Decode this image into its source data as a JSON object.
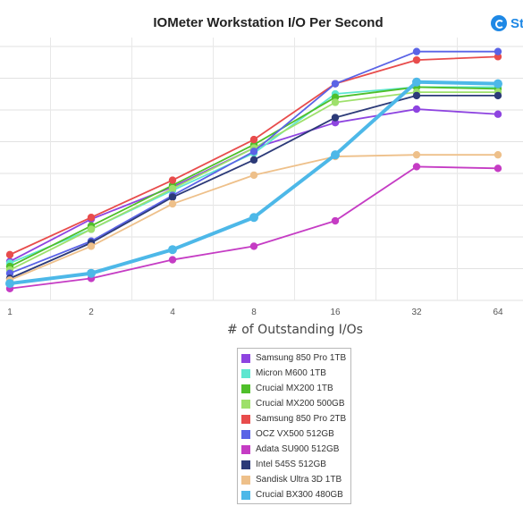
{
  "chart_data": {
    "type": "line",
    "title": "IOMeter Workstation I/O Per Second",
    "xlabel": "# of Outstanding I/Os",
    "ylabel": "",
    "x": [
      1,
      2,
      4,
      8,
      16,
      32,
      64
    ],
    "x_tick_labels": [
      "1",
      "2",
      "4",
      "8",
      "16",
      "32",
      "64"
    ],
    "grid": true,
    "legend_placement": "bottom-center",
    "series": [
      {
        "name": "Samsung 850 Pro 1TB",
        "color": "#8e44e0",
        "values": [
          5.9,
          8.4,
          10.3,
          12.6,
          14.1,
          14.9,
          14.6
        ]
      },
      {
        "name": "Micron M600 1TB",
        "color": "#5ee6d0",
        "values": [
          5.8,
          7.8,
          10.1,
          12.3,
          15.8,
          16.2,
          16.2
        ]
      },
      {
        "name": "Crucial MX200 1TB",
        "color": "#4fbf2a",
        "values": [
          5.6,
          8.0,
          10.4,
          12.8,
          15.6,
          16.2,
          16.1
        ]
      },
      {
        "name": "Crucial MX200 500GB",
        "color": "#9ee06b",
        "values": [
          5.4,
          7.8,
          10.2,
          12.6,
          15.3,
          15.9,
          15.9
        ]
      },
      {
        "name": "Samsung 850 Pro 2TB",
        "color": "#e84c4c",
        "values": [
          6.3,
          8.5,
          10.7,
          13.1,
          16.4,
          17.8,
          18.0
        ]
      },
      {
        "name": "OCZ VX500 512GB",
        "color": "#5a63e6",
        "values": [
          5.2,
          7.1,
          9.8,
          12.4,
          16.4,
          18.3,
          18.3
        ]
      },
      {
        "name": "Adata SU900 512GB",
        "color": "#c53cc4",
        "values": [
          4.3,
          4.9,
          6.0,
          6.8,
          8.3,
          11.5,
          11.4
        ]
      },
      {
        "name": "Intel 545S 512GB",
        "color": "#2c3a78",
        "values": [
          4.9,
          7.0,
          9.7,
          11.9,
          14.4,
          15.7,
          15.7
        ]
      },
      {
        "name": "Sandisk Ultra 3D 1TB",
        "color": "#eec08a",
        "values": [
          4.8,
          6.8,
          9.3,
          11.0,
          12.1,
          12.2,
          12.2
        ]
      },
      {
        "name": "Crucial BX300 480GB",
        "color": "#4db8e8",
        "values": [
          4.6,
          5.2,
          6.6,
          8.5,
          12.2,
          16.5,
          16.4
        ]
      }
    ]
  },
  "brand": {
    "text": "St"
  }
}
